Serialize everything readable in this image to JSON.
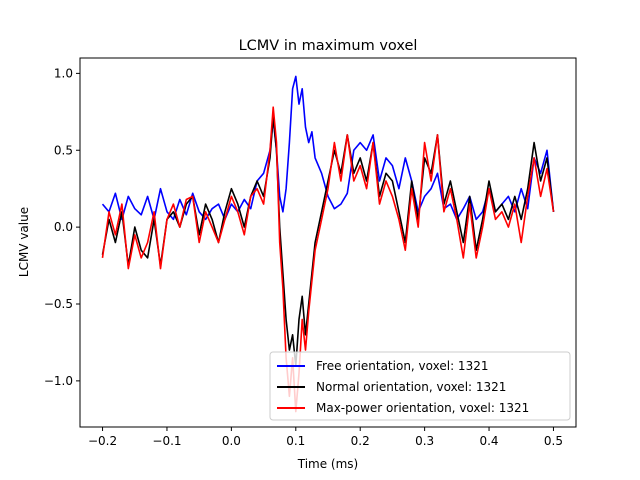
{
  "chart_data": {
    "type": "line",
    "title": "LCMV in maximum voxel",
    "xlabel": "Time (ms)",
    "ylabel": "LCMV value",
    "xlim": [
      -0.235,
      0.535
    ],
    "ylim": [
      -1.3,
      1.1
    ],
    "xticks": [
      -0.2,
      -0.1,
      0.0,
      0.1,
      0.2,
      0.3,
      0.4,
      0.5
    ],
    "xtick_labels": [
      "−0.2",
      "−0.1",
      "0.0",
      "0.1",
      "0.2",
      "0.3",
      "0.4",
      "0.5"
    ],
    "yticks": [
      -1.0,
      -0.5,
      0.0,
      0.5,
      1.0
    ],
    "ytick_labels": [
      "−1.0",
      "−0.5",
      "0.0",
      "0.5",
      "1.0"
    ],
    "grid": false,
    "legend_position": "lower right",
    "series": [
      {
        "name": "Free orientation, voxel: 1321",
        "color": "#0000ff",
        "x": [
          -0.2,
          -0.19,
          -0.18,
          -0.17,
          -0.16,
          -0.15,
          -0.14,
          -0.13,
          -0.12,
          -0.11,
          -0.1,
          -0.09,
          -0.08,
          -0.07,
          -0.06,
          -0.05,
          -0.04,
          -0.03,
          -0.02,
          -0.01,
          0.0,
          0.01,
          0.02,
          0.03,
          0.04,
          0.05,
          0.06,
          0.065,
          0.07,
          0.075,
          0.08,
          0.085,
          0.09,
          0.095,
          0.1,
          0.105,
          0.11,
          0.115,
          0.12,
          0.125,
          0.13,
          0.14,
          0.15,
          0.16,
          0.17,
          0.18,
          0.19,
          0.2,
          0.21,
          0.22,
          0.23,
          0.24,
          0.25,
          0.26,
          0.27,
          0.28,
          0.29,
          0.3,
          0.31,
          0.32,
          0.33,
          0.34,
          0.35,
          0.36,
          0.37,
          0.38,
          0.39,
          0.4,
          0.41,
          0.42,
          0.43,
          0.44,
          0.45,
          0.46,
          0.47,
          0.48,
          0.49,
          0.5
        ],
        "y": [
          0.15,
          0.1,
          0.22,
          0.05,
          0.2,
          0.12,
          0.08,
          0.2,
          0.05,
          0.25,
          0.1,
          0.05,
          0.18,
          0.08,
          0.22,
          0.1,
          0.05,
          0.12,
          0.15,
          0.05,
          0.15,
          0.1,
          0.18,
          0.12,
          0.3,
          0.35,
          0.5,
          0.7,
          0.5,
          0.2,
          0.1,
          0.25,
          0.55,
          0.9,
          0.98,
          0.8,
          0.9,
          0.65,
          0.55,
          0.62,
          0.45,
          0.35,
          0.2,
          0.12,
          0.15,
          0.22,
          0.5,
          0.55,
          0.5,
          0.6,
          0.3,
          0.45,
          0.4,
          0.25,
          0.45,
          0.3,
          0.1,
          0.2,
          0.25,
          0.35,
          0.12,
          0.15,
          0.05,
          0.12,
          0.2,
          0.05,
          0.1,
          0.25,
          0.1,
          0.15,
          0.2,
          0.1,
          0.25,
          0.12,
          0.45,
          0.35,
          0.5,
          0.1
        ]
      },
      {
        "name": "Normal orientation, voxel: 1321",
        "color": "#000000",
        "x": [
          -0.2,
          -0.19,
          -0.18,
          -0.17,
          -0.16,
          -0.15,
          -0.14,
          -0.13,
          -0.12,
          -0.11,
          -0.1,
          -0.09,
          -0.08,
          -0.07,
          -0.06,
          -0.05,
          -0.04,
          -0.03,
          -0.02,
          -0.01,
          0.0,
          0.01,
          0.02,
          0.03,
          0.04,
          0.05,
          0.06,
          0.065,
          0.07,
          0.075,
          0.08,
          0.085,
          0.09,
          0.095,
          0.1,
          0.105,
          0.11,
          0.115,
          0.12,
          0.125,
          0.13,
          0.14,
          0.15,
          0.16,
          0.17,
          0.18,
          0.19,
          0.2,
          0.21,
          0.22,
          0.23,
          0.24,
          0.25,
          0.26,
          0.27,
          0.28,
          0.29,
          0.3,
          0.31,
          0.32,
          0.33,
          0.34,
          0.35,
          0.36,
          0.37,
          0.38,
          0.39,
          0.4,
          0.41,
          0.42,
          0.43,
          0.44,
          0.45,
          0.46,
          0.47,
          0.48,
          0.49,
          0.5
        ],
        "y": [
          -0.18,
          0.05,
          -0.1,
          0.1,
          -0.25,
          0.0,
          -0.15,
          -0.2,
          0.05,
          -0.25,
          0.05,
          0.1,
          0.0,
          0.15,
          0.2,
          -0.05,
          0.15,
          0.05,
          -0.1,
          0.1,
          0.25,
          0.15,
          0.0,
          0.2,
          0.3,
          0.2,
          0.45,
          0.72,
          0.5,
          0.0,
          -0.3,
          -0.6,
          -0.8,
          -0.7,
          -0.9,
          -0.6,
          -0.45,
          -0.7,
          -0.5,
          -0.3,
          -0.1,
          0.1,
          0.3,
          0.5,
          0.35,
          0.6,
          0.35,
          0.45,
          0.3,
          0.55,
          0.2,
          0.35,
          0.3,
          0.1,
          -0.1,
          0.3,
          0.05,
          0.45,
          0.35,
          0.6,
          0.15,
          0.3,
          0.1,
          -0.1,
          0.2,
          -0.15,
          0.05,
          0.3,
          0.1,
          0.15,
          0.05,
          0.2,
          0.05,
          0.25,
          0.55,
          0.3,
          0.45,
          0.1
        ]
      },
      {
        "name": "Max-power orientation, voxel: 1321",
        "color": "#ff0000",
        "x": [
          -0.2,
          -0.19,
          -0.18,
          -0.17,
          -0.16,
          -0.15,
          -0.14,
          -0.13,
          -0.12,
          -0.11,
          -0.1,
          -0.09,
          -0.08,
          -0.07,
          -0.06,
          -0.05,
          -0.04,
          -0.03,
          -0.02,
          -0.01,
          0.0,
          0.01,
          0.02,
          0.03,
          0.04,
          0.05,
          0.06,
          0.065,
          0.07,
          0.075,
          0.08,
          0.085,
          0.09,
          0.095,
          0.1,
          0.105,
          0.11,
          0.115,
          0.12,
          0.125,
          0.13,
          0.14,
          0.15,
          0.16,
          0.17,
          0.18,
          0.19,
          0.2,
          0.21,
          0.22,
          0.23,
          0.24,
          0.25,
          0.26,
          0.27,
          0.28,
          0.29,
          0.3,
          0.31,
          0.32,
          0.33,
          0.34,
          0.35,
          0.36,
          0.37,
          0.38,
          0.39,
          0.4,
          0.41,
          0.42,
          0.43,
          0.44,
          0.45,
          0.46,
          0.47,
          0.48,
          0.49,
          0.5
        ],
        "y": [
          -0.2,
          0.1,
          -0.05,
          0.15,
          -0.27,
          -0.05,
          -0.2,
          -0.1,
          0.1,
          -0.27,
          0.05,
          0.15,
          0.0,
          0.18,
          0.2,
          -0.1,
          0.1,
          0.0,
          -0.1,
          0.05,
          0.2,
          0.1,
          -0.05,
          0.2,
          0.25,
          0.15,
          0.5,
          0.78,
          0.55,
          -0.1,
          -0.4,
          -0.85,
          -1.1,
          -0.85,
          -1.2,
          -0.95,
          -0.6,
          -0.8,
          -0.55,
          -0.35,
          -0.15,
          0.05,
          0.25,
          0.55,
          0.3,
          0.6,
          0.3,
          0.4,
          0.25,
          0.55,
          0.15,
          0.3,
          0.2,
          0.05,
          -0.15,
          0.25,
          0.0,
          0.55,
          0.3,
          0.6,
          0.1,
          0.25,
          0.05,
          -0.2,
          0.15,
          -0.2,
          0.0,
          0.25,
          0.05,
          0.1,
          0.0,
          0.15,
          -0.1,
          0.2,
          0.45,
          0.2,
          0.38,
          0.1
        ]
      }
    ]
  }
}
